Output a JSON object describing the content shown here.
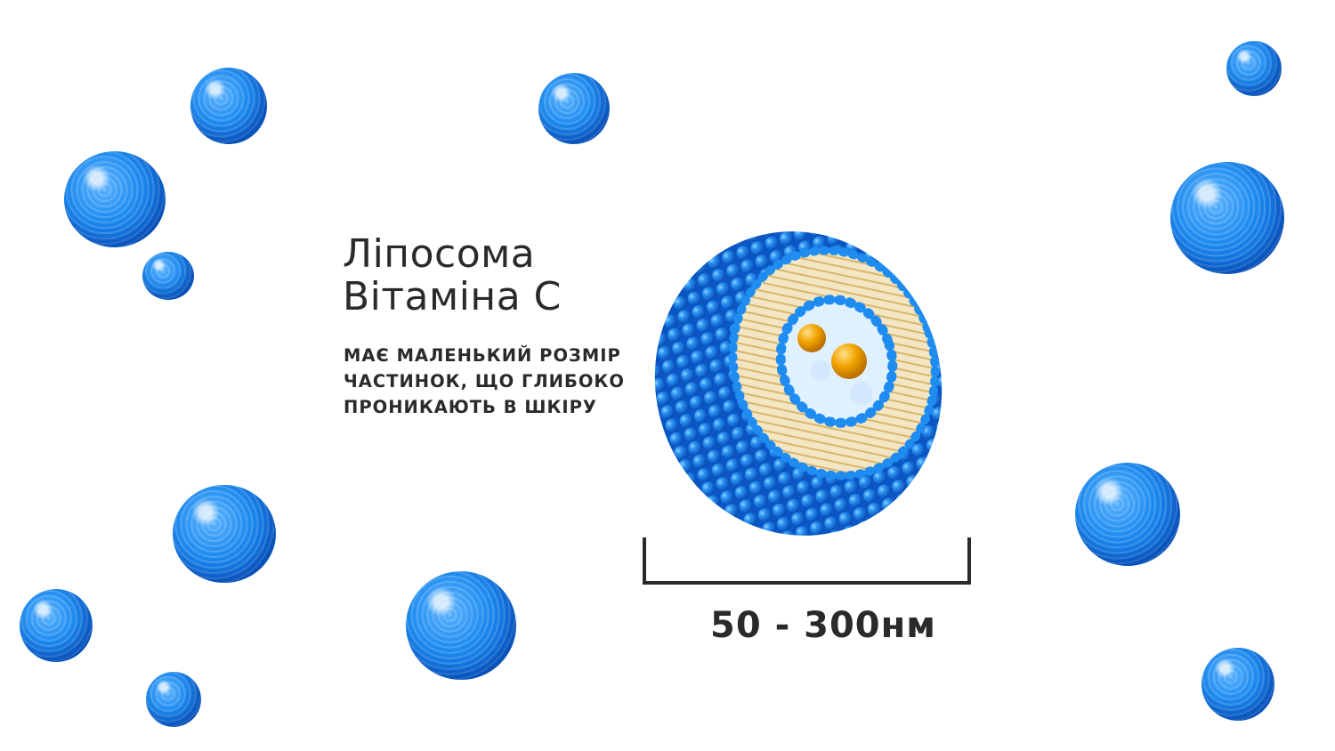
{
  "title": {
    "line1": "Ліпосома",
    "line2": "Вітаміна С"
  },
  "description": {
    "line1": "МАЄ МАЛЕНЬКИЙ РОЗМІР",
    "line2": "ЧАСТИНОК, ЩО ГЛИБОКО",
    "line3": "ПРОНИКАЮТЬ В ШКІРУ"
  },
  "size_label": "50 - 300нм",
  "colors": {
    "sphere_blue": "#1e8cf0",
    "lipid_tail": "#d9b56a",
    "vitamin_core": "#f2a400",
    "text": "#2a2a2a"
  },
  "icons": [
    "liposome-illustration",
    "liposome-sphere",
    "scale-bracket"
  ]
}
